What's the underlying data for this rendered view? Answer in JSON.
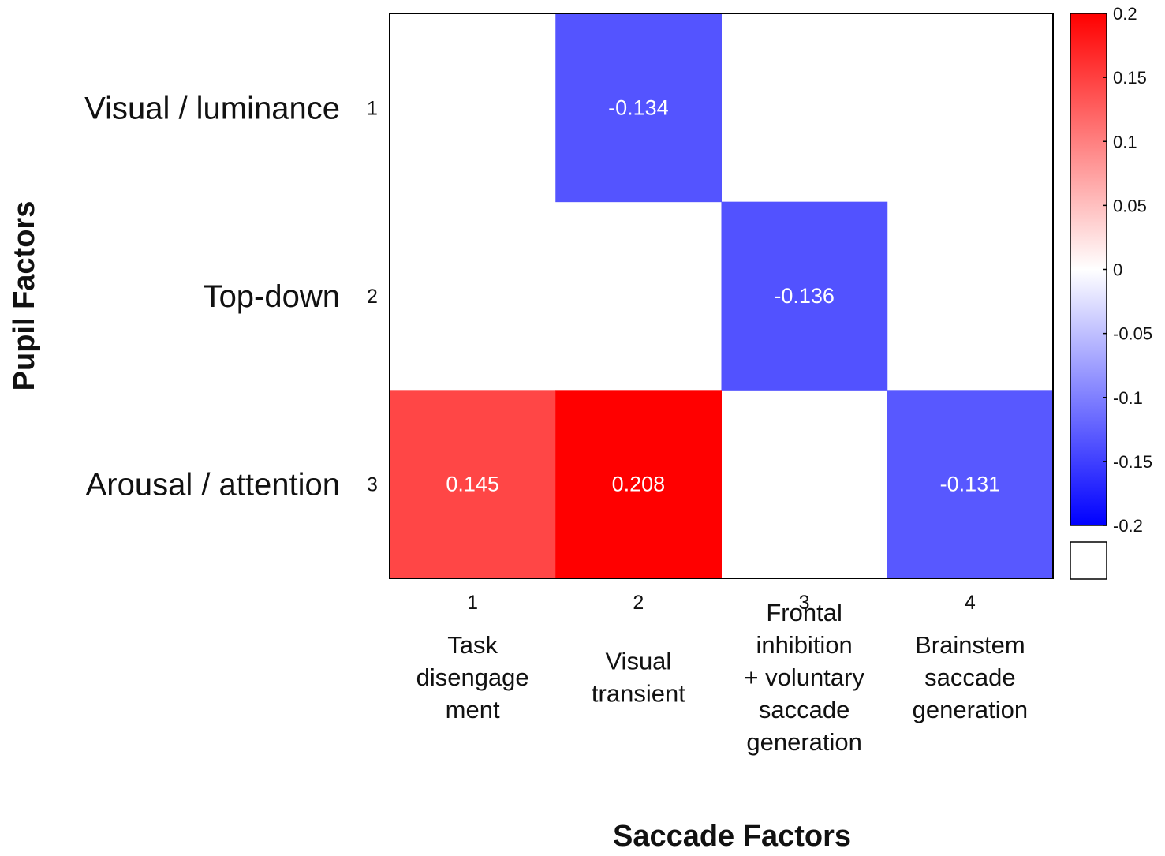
{
  "chart_data": {
    "type": "heatmap",
    "xlabel": "Saccade Factors",
    "ylabel": "Pupil Factors",
    "columns": [
      {
        "tick": "1",
        "label": [
          "Task",
          "disengage",
          "ment"
        ]
      },
      {
        "tick": "2",
        "label": [
          "Visual",
          "transient"
        ]
      },
      {
        "tick": "3",
        "label": [
          "Frontal",
          "inhibition",
          "+ voluntary",
          "saccade",
          "generation"
        ]
      },
      {
        "tick": "4",
        "label": [
          "Brainstem",
          "saccade",
          "generation"
        ]
      }
    ],
    "rows": [
      {
        "tick": "1",
        "label": "Visual / luminance"
      },
      {
        "tick": "2",
        "label": "Top-down"
      },
      {
        "tick": "3",
        "label": "Arousal / attention"
      }
    ],
    "values": [
      [
        null,
        -0.134,
        null,
        null
      ],
      [
        null,
        null,
        -0.136,
        null
      ],
      [
        0.145,
        0.208,
        null,
        -0.131
      ]
    ],
    "cell_labels": [
      [
        null,
        "-0.134",
        null,
        null
      ],
      [
        null,
        null,
        "-0.136",
        null
      ],
      [
        "0.145",
        "0.208",
        null,
        "-0.131"
      ]
    ],
    "colorbar": {
      "range": [
        -0.2,
        0.2
      ],
      "ticks": [
        "0.2",
        "0.15",
        "0.1",
        "0.05",
        "0",
        "-0.05",
        "-0.1",
        "-0.15",
        "-0.2"
      ],
      "colormap": [
        "#0000ff",
        "#ffffff",
        "#ff0000"
      ]
    }
  }
}
